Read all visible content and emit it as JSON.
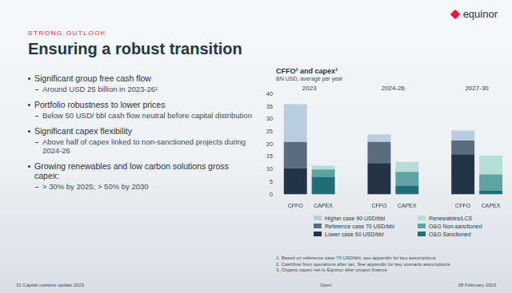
{
  "slide": {
    "logo": "equinor",
    "kicker": "STRONG OUTLOOK",
    "title": "Ensuring a robust transition",
    "bullets": [
      {
        "text": "Significant group free cash flow",
        "sub": "Around USD 25 billion in 2023-26¹"
      },
      {
        "text": "Portfolio robustness to lower prices",
        "sub": "Below 50 USD/ bbl cash flow neutral before capital distribution"
      },
      {
        "text": "Significant capex flexibility",
        "sub": "Above half of capex linked to non-sanctioned projects during 2024-26"
      },
      {
        "text": "Growing renewables and low carbon solutions gross capex:",
        "sub": "> 30% by 2025; > 50% by 2030"
      }
    ],
    "footnotes": [
      "1. Based on reference case 70 USD/bbl, see appendix for key assumptions",
      "2. Cashflow from operations after tax. See appendix for key scenario assumptions",
      "3. Organic capex net to Equinor after project finance"
    ],
    "footer": {
      "left": "31 Capital markets update 2023",
      "center": "Open",
      "right": "08 February 2023"
    }
  },
  "chart_data": {
    "type": "bar",
    "title": "CFFO² and capex³",
    "subtitle": "BN USD, average per year",
    "stacked": true,
    "categories": [
      "CFFO",
      "CAPEX",
      null,
      "CFFO",
      "CAPEX",
      null,
      "CFFO",
      "CAPEX"
    ],
    "group_labels": [
      "2023",
      "2024-26",
      "2027-30"
    ],
    "series": [
      {
        "name": "Higher case 90 USD/bbl",
        "color": "#b9cde0",
        "values": [
          15,
          null,
          null,
          3,
          null,
          null,
          4,
          null
        ]
      },
      {
        "name": "Reference case 70 USD/bbl",
        "color": "#5b6c7e",
        "values": [
          10.5,
          null,
          null,
          8.5,
          null,
          null,
          5.5,
          null
        ]
      },
      {
        "name": "Lower case 50 USD/bbl",
        "color": "#243447",
        "values": [
          10.5,
          null,
          null,
          12.5,
          null,
          null,
          16,
          null
        ]
      },
      {
        "name": "Renewables/LCS",
        "color": "#b6ddd8",
        "values": [
          null,
          1.5,
          null,
          null,
          4,
          null,
          null,
          7.5
        ]
      },
      {
        "name": "O&G Non-sanctioned",
        "color": "#5fa3a3",
        "values": [
          null,
          3,
          null,
          null,
          5.5,
          null,
          null,
          6.5
        ]
      },
      {
        "name": "O&G Sanctioned",
        "color": "#1f6f78",
        "values": [
          null,
          7,
          null,
          null,
          3.5,
          null,
          null,
          1.5
        ]
      }
    ],
    "ylim": [
      0,
      40
    ],
    "yticks": [
      0,
      5,
      10,
      15,
      20,
      25,
      30,
      35,
      40
    ],
    "grid": false,
    "legend": "bottom"
  }
}
